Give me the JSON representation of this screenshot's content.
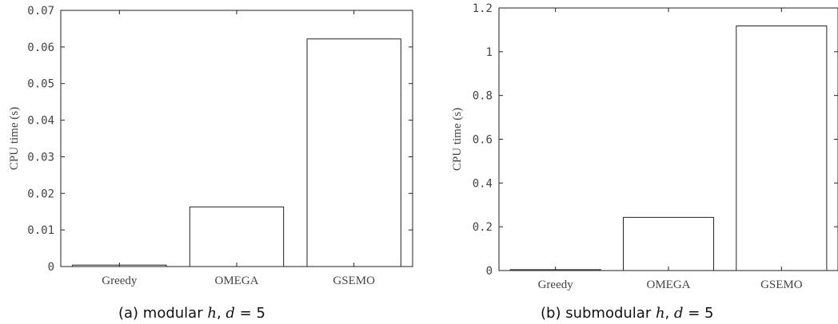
{
  "chart_data": [
    {
      "type": "bar",
      "categories": [
        "Greedy",
        "OMEGA",
        "GSEMO"
      ],
      "values": [
        0.0004,
        0.0163,
        0.0622
      ],
      "ylabel": "CPU time (s)",
      "xlabel": "",
      "ylim": [
        0,
        0.07
      ],
      "yticks": [
        0,
        0.01,
        0.02,
        0.03,
        0.04,
        0.05,
        0.06,
        0.07
      ],
      "ytick_labels": [
        "0",
        "0.01",
        "0.02",
        "0.03",
        "0.04",
        "0.05",
        "0.06",
        "0.07"
      ],
      "grid": false,
      "caption": {
        "prefix": "(a) modular ",
        "var_h": "h",
        "sep": ", ",
        "var_d": "d",
        "suffix": " = 5"
      }
    },
    {
      "type": "bar",
      "categories": [
        "Greedy",
        "OMEGA",
        "GSEMO"
      ],
      "values": [
        0.004,
        0.243,
        1.118
      ],
      "ylabel": "CPU time (s)",
      "xlabel": "",
      "ylim": [
        0,
        1.2
      ],
      "yticks": [
        0,
        0.2,
        0.4,
        0.6,
        0.8,
        1,
        1.2
      ],
      "ytick_labels": [
        "0",
        "0.2",
        "0.4",
        "0.6",
        "0.8",
        "1",
        "1.2"
      ],
      "grid": false,
      "caption": {
        "prefix": "(b) submodular ",
        "var_h": "h",
        "sep": ", ",
        "var_d": "d",
        "suffix": " = 5"
      }
    }
  ]
}
